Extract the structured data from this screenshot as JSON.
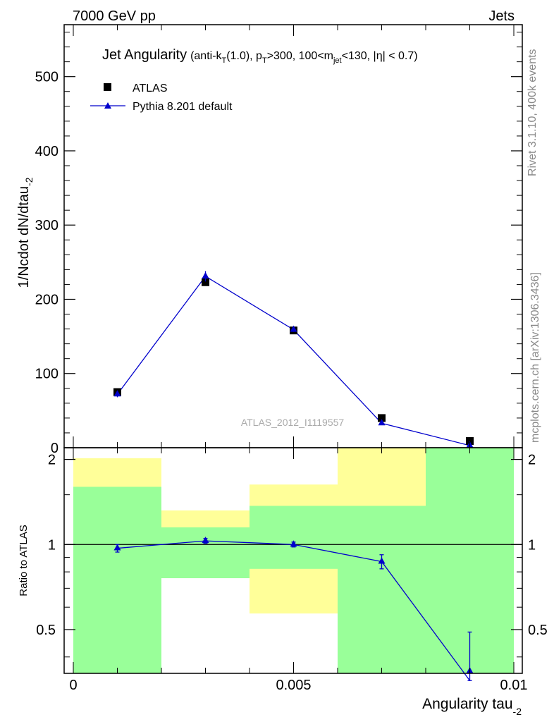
{
  "header": {
    "left": "7000 GeV pp",
    "right": "Jets"
  },
  "title": {
    "main": "Jet Angularity",
    "detail_parts": [
      "(anti-k",
      "T",
      "(1.0), p",
      "T",
      ">300, 100<m",
      "jet",
      "<130, |η| < 0.7)"
    ]
  },
  "side_labels": {
    "rivet": "Rivet 3.1.10,  400k events",
    "mcplots": "mcplots.cern.ch [arXiv:1306.3436]"
  },
  "watermark": "ATLAS_2012_I1119557",
  "colors": {
    "data": "#000000",
    "mc": "#0000cc",
    "band_green": "#99ff99",
    "band_yellow": "#ffff99"
  },
  "chart_data": [
    {
      "type": "scatter",
      "panel": "main",
      "ylabel": "1/Ncdot dN/dtau",
      "ylabel_sub": "-2",
      "ylim": [
        0,
        570
      ],
      "yticks": [
        0,
        100,
        200,
        300,
        400,
        500
      ],
      "legend_position": "top-left",
      "series": [
        {
          "name": "ATLAS",
          "marker": "square",
          "x": [
            0.001,
            0.003,
            0.005,
            0.007,
            0.009
          ],
          "values": [
            75,
            223,
            158,
            40,
            9
          ]
        },
        {
          "name": "Pythia 8.201 default",
          "marker": "triangle",
          "x": [
            0.001,
            0.003,
            0.005,
            0.007,
            0.009
          ],
          "values": [
            72,
            231,
            159,
            33,
            3
          ],
          "errors": [
            4,
            7,
            3,
            2,
            1
          ]
        }
      ]
    },
    {
      "type": "line",
      "panel": "ratio",
      "ylabel": "Ratio to ATLAS",
      "xlabel": "Angularity tau",
      "xlabel_sub": "-2",
      "xlim": [
        0,
        0.01
      ],
      "xticks": [
        "0",
        "0.005",
        "0.01"
      ],
      "ylim": [
        0.35,
        2.2
      ],
      "yticks": [
        "0.5",
        "1",
        "2"
      ],
      "bins": [
        [
          0,
          0.002
        ],
        [
          0.002,
          0.004
        ],
        [
          0.004,
          0.006
        ],
        [
          0.006,
          0.008
        ],
        [
          0.008,
          0.01
        ]
      ],
      "band_green": [
        [
          0.35,
          1.6
        ],
        [
          0.76,
          1.15
        ],
        [
          0.82,
          1.37
        ],
        [
          0.35,
          1.37
        ],
        [
          0.35,
          2.2
        ]
      ],
      "band_yellow": [
        [
          0.35,
          2.02
        ],
        [
          0.76,
          1.32
        ],
        [
          0.57,
          1.63
        ],
        [
          0.35,
          2.2
        ],
        [
          0.35,
          2.2
        ]
      ],
      "series": [
        {
          "name": "Pythia 8.201 default / ATLAS",
          "x": [
            0.001,
            0.003,
            0.005,
            0.007,
            0.009
          ],
          "values": [
            0.97,
            1.03,
            1.0,
            0.87,
            0.33
          ],
          "err_low": [
            0.03,
            0.02,
            0.02,
            0.05,
            0.0
          ],
          "err_high": [
            0.03,
            0.02,
            0.02,
            0.05,
            0.16
          ]
        }
      ]
    }
  ]
}
